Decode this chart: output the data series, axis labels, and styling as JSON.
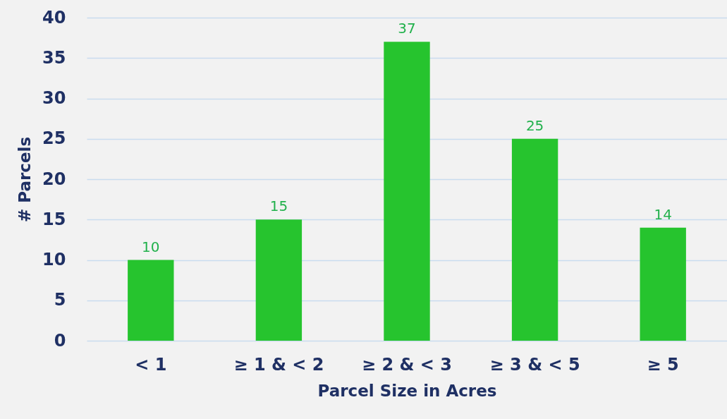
{
  "chart_data": {
    "type": "bar",
    "xlabel": "Parcel Size in Acres",
    "ylabel": "# Parcels",
    "categories": [
      "< 1",
      "≥ 1 & < 2",
      "≥ 2 & < 3",
      "≥ 3 & < 5",
      "≥ 5"
    ],
    "values": [
      10,
      15,
      37,
      25,
      14
    ],
    "color": "#26c42e",
    "ylim": [
      0,
      40
    ],
    "yticks": [
      0,
      5,
      10,
      15,
      20,
      25,
      30,
      35,
      40
    ],
    "grid": "y",
    "data_labels": true
  }
}
